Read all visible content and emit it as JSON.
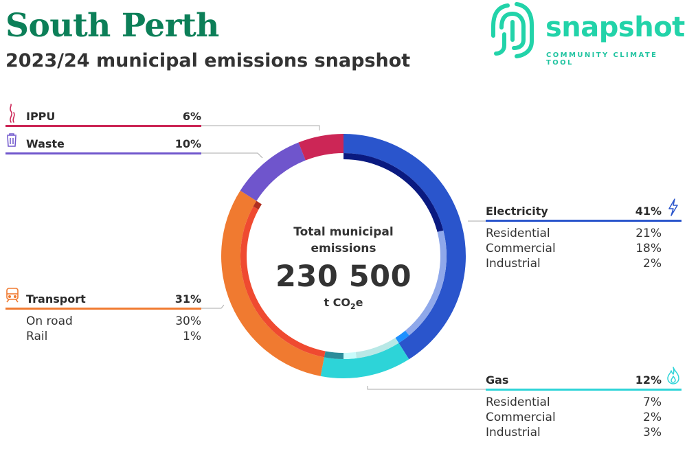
{
  "header": {
    "title": "South Perth",
    "subtitle": "2023/24 municipal emissions snapshot"
  },
  "logo": {
    "word": "snapshot",
    "tagline": "COMMUNITY CLIMATE TOOL"
  },
  "center": {
    "label": "Total municipal emissions",
    "value": "230 500",
    "unit_prefix": "t CO",
    "unit_sub": "2",
    "unit_suffix": "e"
  },
  "categories": {
    "ippu": {
      "label": "IPPU",
      "pct": "6%",
      "color": "#cc2656",
      "icon": "smoke-icon"
    },
    "waste": {
      "label": "Waste",
      "pct": "10%",
      "color": "#6f55cc",
      "icon": "trash-bin-icon"
    },
    "transport": {
      "label": "Transport",
      "pct": "31%",
      "color": "#f07a30",
      "icon": "train-icon",
      "subs": [
        {
          "label": "On road",
          "pct": "30%"
        },
        {
          "label": "Rail",
          "pct": "1%"
        }
      ]
    },
    "electricity": {
      "label": "Electricity",
      "pct": "41%",
      "color": "#2a55cc",
      "icon": "lightning-icon",
      "subs": [
        {
          "label": "Residential",
          "pct": "21%"
        },
        {
          "label": "Commercial",
          "pct": "18%"
        },
        {
          "label": "Industrial",
          "pct": "2%"
        }
      ]
    },
    "gas": {
      "label": "Gas",
      "pct": "12%",
      "color": "#2dd4d8",
      "icon": "flame-icon",
      "subs": [
        {
          "label": "Residential",
          "pct": "7%"
        },
        {
          "label": "Commercial",
          "pct": "2%"
        },
        {
          "label": "Industrial",
          "pct": "3%"
        }
      ]
    }
  },
  "chart_data": {
    "type": "pie",
    "style": "donut with inner sub-sector ring",
    "title": "Total municipal emissions",
    "total": 230500,
    "unit": "t CO2e",
    "series": [
      {
        "name": "Electricity",
        "value": 41,
        "color": "#2a55cc",
        "subs": [
          {
            "name": "Residential",
            "value": 21,
            "color": "#0a1a80"
          },
          {
            "name": "Commercial",
            "value": 18,
            "color": "#8fa8ea"
          },
          {
            "name": "Industrial",
            "value": 2,
            "color": "#1e90ff"
          }
        ]
      },
      {
        "name": "Gas",
        "value": 12,
        "color": "#2dd4d8",
        "subs": [
          {
            "name": "Residential",
            "value": 7,
            "color": "#b8e8e6"
          },
          {
            "name": "Commercial",
            "value": 2,
            "color": "#c8fbfb"
          },
          {
            "name": "Industrial",
            "value": 3,
            "color": "#2c8c9a"
          }
        ]
      },
      {
        "name": "Transport",
        "value": 31,
        "color": "#f07a30",
        "subs": [
          {
            "name": "On road",
            "value": 30,
            "color": "#ef4a30"
          },
          {
            "name": "Rail",
            "value": 1,
            "color": "#b03020"
          }
        ]
      },
      {
        "name": "Waste",
        "value": 10,
        "color": "#6f55cc",
        "subs": []
      },
      {
        "name": "IPPU",
        "value": 6,
        "color": "#cc2656",
        "subs": []
      }
    ]
  }
}
